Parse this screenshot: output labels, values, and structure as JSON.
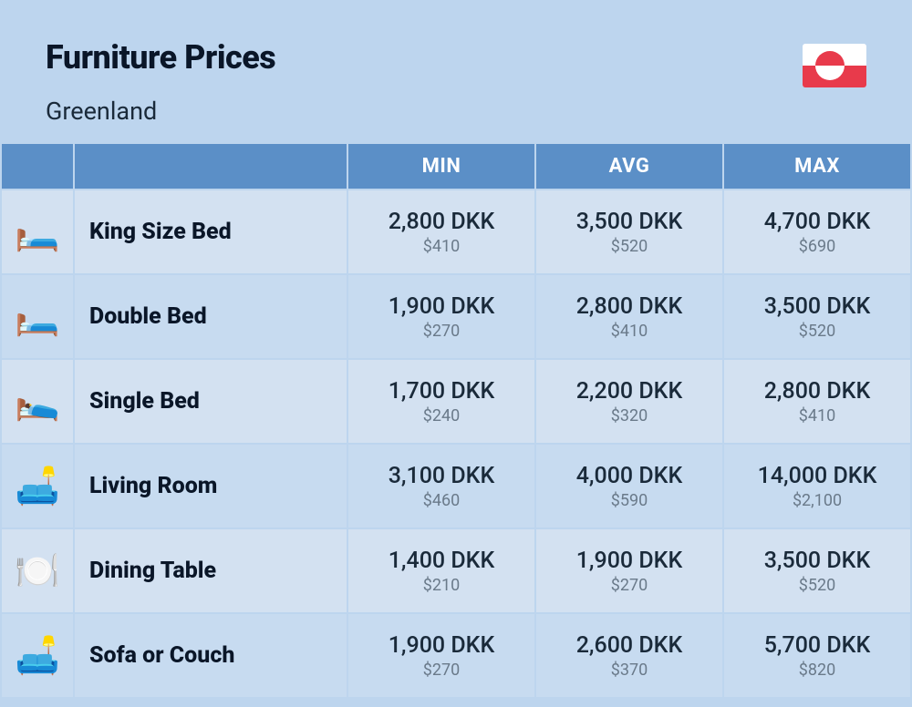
{
  "header": {
    "title": "Furniture Prices",
    "subtitle": "Greenland"
  },
  "columns": {
    "min": "MIN",
    "avg": "AVG",
    "max": "MAX"
  },
  "rows": [
    {
      "icon": "🛏️",
      "name": "King Size Bed",
      "min_main": "2,800 DKK",
      "min_sub": "$410",
      "avg_main": "3,500 DKK",
      "avg_sub": "$520",
      "max_main": "4,700 DKK",
      "max_sub": "$690"
    },
    {
      "icon": "🛏️",
      "name": "Double Bed",
      "min_main": "1,900 DKK",
      "min_sub": "$270",
      "avg_main": "2,800 DKK",
      "avg_sub": "$410",
      "max_main": "3,500 DKK",
      "max_sub": "$520"
    },
    {
      "icon": "🛌",
      "name": "Single Bed",
      "min_main": "1,700 DKK",
      "min_sub": "$240",
      "avg_main": "2,200 DKK",
      "avg_sub": "$320",
      "max_main": "2,800 DKK",
      "max_sub": "$410"
    },
    {
      "icon": "🛋️",
      "name": "Living Room",
      "min_main": "3,100 DKK",
      "min_sub": "$460",
      "avg_main": "4,000 DKK",
      "avg_sub": "$590",
      "max_main": "14,000 DKK",
      "max_sub": "$2,100"
    },
    {
      "icon": "🍽️",
      "name": "Dining Table",
      "min_main": "1,400 DKK",
      "min_sub": "$210",
      "avg_main": "1,900 DKK",
      "avg_sub": "$270",
      "max_main": "3,500 DKK",
      "max_sub": "$520"
    },
    {
      "icon": "🛋️",
      "name": "Sofa or Couch",
      "min_main": "1,900 DKK",
      "min_sub": "$270",
      "avg_main": "2,600 DKK",
      "avg_sub": "$370",
      "max_main": "5,700 DKK",
      "max_sub": "$820"
    }
  ],
  "style": {
    "page_bg": "#bdd5ee",
    "header_bg": "#5b8fc7",
    "header_fg": "#ffffff",
    "row_odd_bg": "#d3e1f1",
    "row_even_bg": "#c7dbf0",
    "title_color": "#0a1628",
    "sub_price_color": "#6a7a8a",
    "flag_red": "#e83a4b"
  }
}
